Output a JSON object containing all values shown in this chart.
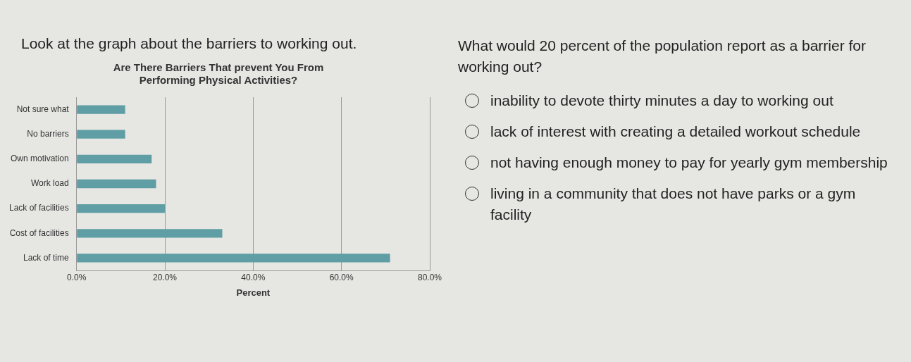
{
  "chart_data": [
    {
      "type": "bar",
      "orientation": "horizontal",
      "title": "Are There Barriers That prevent You From Performing Physical Activities?",
      "xlabel": "Percent",
      "annotations": [
        "Look at the graph about the barriers to working out."
      ],
      "categories": [
        "Not sure what",
        "No barriers",
        "Own motivation",
        "Work load",
        "Lack of facilities",
        "Cost of facilities",
        "Lack of time"
      ],
      "values": [
        11,
        11,
        17,
        18,
        20,
        33,
        71
      ],
      "color": "#5e9ea4",
      "xlim": [
        0,
        80
      ],
      "xticks": [
        {
          "value": 0,
          "label": "0.0%"
        },
        {
          "value": 20,
          "label": "20.0%"
        },
        {
          "value": 40,
          "label": "40.0%"
        },
        {
          "value": 60,
          "label": "60.0%"
        },
        {
          "value": 80,
          "label": "80.0%"
        }
      ],
      "grid": "x",
      "legend": false
    },
    {
      "type": "other",
      "title": "What would 20 percent of the population report as a barrier for working out?",
      "annotations": [
        "inability to devote thirty minutes a day to working out",
        "lack of interest with creating a detailed workout schedule",
        "not having enough money to pay for yearly gym membership",
        "living in a community that does not have parks or a gym facility"
      ]
    }
  ]
}
